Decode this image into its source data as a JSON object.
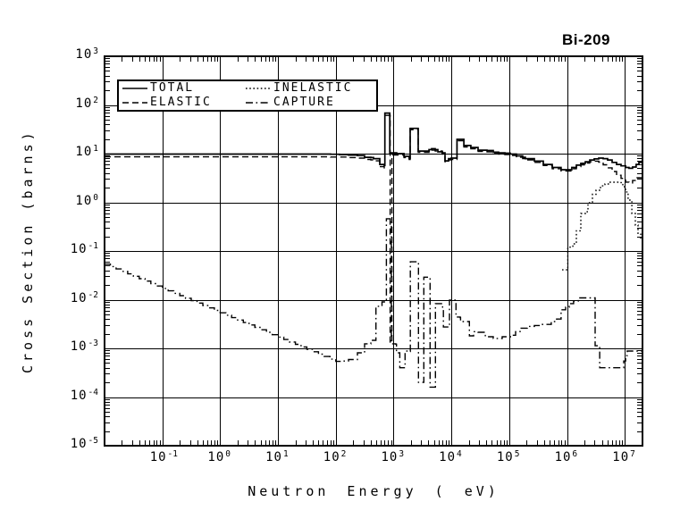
{
  "title": "Bi-209",
  "axes": {
    "xlabel": "Neutron Energy ( eV)",
    "ylabel": "Cross Section (barns)",
    "tick_base": "10",
    "xlim_log": [
      -2,
      7.305
    ],
    "ylim_log": [
      -5,
      3
    ],
    "x_tick_exponents": [
      "-1",
      "0",
      "1",
      "2",
      "3",
      "4",
      "5",
      "6",
      "7"
    ],
    "y_tick_exponents": [
      "3",
      "2",
      "1",
      "0",
      "-1",
      "-2",
      "-3",
      "-4",
      "-5"
    ],
    "line_color": "#000000",
    "background": "#ffffff"
  },
  "legend": {
    "entries": [
      {
        "label": "TOTAL",
        "style": "solid"
      },
      {
        "label": "INELASTIC",
        "style": "dotted"
      },
      {
        "label": "ELASTIC",
        "style": "dashed"
      },
      {
        "label": "CAPTURE",
        "style": "dashdot"
      }
    ]
  },
  "chart_data": {
    "type": "line",
    "x_unit": "eV",
    "y_unit": "barns",
    "x_scale": "log",
    "y_scale": "log",
    "step_plot": true,
    "series": [
      {
        "name": "TOTAL",
        "style": "solid",
        "points": [
          [
            0.01,
            9.8
          ],
          [
            81,
            9.7
          ],
          [
            116,
            9.5
          ],
          [
            166,
            9.3
          ],
          [
            237,
            9.1
          ],
          [
            315,
            8.4
          ],
          [
            404,
            8.3
          ],
          [
            449,
            7.9
          ],
          [
            576,
            6.0
          ],
          [
            688,
            5.7
          ],
          [
            707,
            68
          ],
          [
            852,
            68
          ],
          [
            860,
            10.4
          ],
          [
            1130,
            10.0
          ],
          [
            1510,
            8.8
          ],
          [
            1860,
            8.1
          ],
          [
            1930,
            33
          ],
          [
            2610,
            33
          ],
          [
            2660,
            11.3
          ],
          [
            4090,
            12.1
          ],
          [
            4540,
            12.6
          ],
          [
            5240,
            12.1
          ],
          [
            5820,
            10.9
          ],
          [
            6960,
            10.4
          ],
          [
            7740,
            7.1
          ],
          [
            8930,
            7.9
          ],
          [
            9940,
            8.1
          ],
          [
            12500,
            19.7
          ],
          [
            16100,
            19.7
          ],
          [
            16400,
            14.7
          ],
          [
            21700,
            13.4
          ],
          [
            28900,
            11.8
          ],
          [
            41200,
            11.6
          ],
          [
            52900,
            10.7
          ],
          [
            65500,
            10.4
          ],
          [
            84000,
            10.2
          ],
          [
            104000,
            9.8
          ],
          [
            133000,
            9.0
          ],
          [
            171000,
            8.4
          ],
          [
            190000,
            7.9
          ],
          [
            272000,
            7.0
          ],
          [
            388000,
            6.0
          ],
          [
            554000,
            5.2
          ],
          [
            790000,
            4.67
          ],
          [
            1090000,
            4.67
          ],
          [
            1210000,
            5.2
          ],
          [
            1450000,
            5.8
          ],
          [
            1730000,
            6.3
          ],
          [
            2070000,
            6.8
          ],
          [
            2470000,
            7.4
          ],
          [
            2950000,
            7.8
          ],
          [
            3530000,
            8.1
          ],
          [
            4210000,
            7.9
          ],
          [
            5040000,
            7.4
          ],
          [
            6010000,
            6.6
          ],
          [
            7180000,
            6.0
          ],
          [
            8580000,
            5.6
          ],
          [
            10300000,
            5.2
          ],
          [
            11800000,
            5.0
          ],
          [
            13600000,
            5.3
          ],
          [
            15700000,
            6.0
          ],
          [
            17500000,
            6.6
          ],
          [
            20000000,
            7.3
          ]
        ]
      },
      {
        "name": "ELASTIC",
        "style": "dashed",
        "points": [
          [
            0.01,
            8.6
          ],
          [
            81,
            8.5
          ],
          [
            166,
            8.3
          ],
          [
            237,
            8.1
          ],
          [
            315,
            7.6
          ],
          [
            404,
            7.45
          ],
          [
            449,
            7.1
          ],
          [
            576,
            5.4
          ],
          [
            688,
            5.1
          ],
          [
            707,
            61
          ],
          [
            852,
            61
          ],
          [
            870,
            0.0013
          ],
          [
            930,
            0.0013
          ],
          [
            935,
            9.4
          ],
          [
            1130,
            9.4
          ],
          [
            1510,
            8.3
          ],
          [
            1860,
            7.6
          ],
          [
            1930,
            31
          ],
          [
            2610,
            31
          ],
          [
            2660,
            10.6
          ],
          [
            4090,
            11.3
          ],
          [
            4540,
            11.8
          ],
          [
            5240,
            11.3
          ],
          [
            6960,
            9.8
          ],
          [
            7740,
            6.8
          ],
          [
            8930,
            7.45
          ],
          [
            9940,
            7.6
          ],
          [
            12500,
            18.4
          ],
          [
            16100,
            18.4
          ],
          [
            16400,
            13.7
          ],
          [
            21700,
            12.6
          ],
          [
            28900,
            11.1
          ],
          [
            41200,
            10.9
          ],
          [
            52900,
            10.0
          ],
          [
            65500,
            9.8
          ],
          [
            84000,
            9.6
          ],
          [
            104000,
            9.2
          ],
          [
            133000,
            8.4
          ],
          [
            171000,
            7.9
          ],
          [
            190000,
            7.45
          ],
          [
            272000,
            6.6
          ],
          [
            388000,
            5.7
          ],
          [
            554000,
            4.9
          ],
          [
            790000,
            4.4
          ],
          [
            1090000,
            4.4
          ],
          [
            1210000,
            4.9
          ],
          [
            1450000,
            5.4
          ],
          [
            1730000,
            5.9
          ],
          [
            2070000,
            6.4
          ],
          [
            2470000,
            6.8
          ],
          [
            2950000,
            7.0
          ],
          [
            3530000,
            6.7
          ],
          [
            4210000,
            5.9
          ],
          [
            5040000,
            5.1
          ],
          [
            6010000,
            4.3
          ],
          [
            7180000,
            3.6
          ],
          [
            8580000,
            3.1
          ],
          [
            10300000,
            2.6
          ],
          [
            11800000,
            2.5
          ],
          [
            13600000,
            2.8
          ],
          [
            16300000,
            3.2
          ],
          [
            20000000,
            3.5
          ]
        ]
      },
      {
        "name": "INELASTIC",
        "style": "dotted",
        "points": [
          [
            820000,
            0.041
          ],
          [
            1010000,
            0.041
          ],
          [
            1030000,
            0.12
          ],
          [
            1260000,
            0.14
          ],
          [
            1450000,
            0.26
          ],
          [
            1730000,
            0.59
          ],
          [
            2070000,
            0.64
          ],
          [
            2300000,
            0.98
          ],
          [
            2750000,
            1.46
          ],
          [
            3170000,
            1.77
          ],
          [
            3790000,
            2.18
          ],
          [
            4530000,
            2.38
          ],
          [
            5410000,
            2.59
          ],
          [
            8000000,
            2.54
          ],
          [
            9230000,
            2.09
          ],
          [
            10300000,
            1.63
          ],
          [
            11400000,
            1.11
          ],
          [
            13200000,
            0.59
          ],
          [
            15200000,
            0.34
          ],
          [
            16900000,
            0.23
          ],
          [
            18800000,
            0.17
          ]
        ]
      },
      {
        "name": "CAPTURE",
        "style": "dashdot",
        "points": [
          [
            0.01,
            0.0537
          ],
          [
            0.0126,
            0.0479
          ],
          [
            0.0158,
            0.0427
          ],
          [
            0.02,
            0.0381
          ],
          [
            0.0251,
            0.0339
          ],
          [
            0.0316,
            0.0303
          ],
          [
            0.0398,
            0.027
          ],
          [
            0.0501,
            0.0241
          ],
          [
            0.0631,
            0.0214
          ],
          [
            0.0794,
            0.0191
          ],
          [
            0.1,
            0.017
          ],
          [
            0.126,
            0.0152
          ],
          [
            0.158,
            0.0135
          ],
          [
            0.2,
            0.0121
          ],
          [
            0.251,
            0.0107
          ],
          [
            0.316,
            0.00955
          ],
          [
            0.398,
            0.00852
          ],
          [
            0.501,
            0.00759
          ],
          [
            0.631,
            0.00677
          ],
          [
            0.794,
            0.00603
          ],
          [
            1.0,
            0.00537
          ],
          [
            1.26,
            0.00479
          ],
          [
            1.58,
            0.00427
          ],
          [
            2.0,
            0.00381
          ],
          [
            2.51,
            0.00339
          ],
          [
            3.16,
            0.00303
          ],
          [
            3.98,
            0.0027
          ],
          [
            5.01,
            0.00241
          ],
          [
            6.31,
            0.00214
          ],
          [
            7.94,
            0.00191
          ],
          [
            10,
            0.0017
          ],
          [
            12.6,
            0.00152
          ],
          [
            15.8,
            0.00135
          ],
          [
            20,
            0.00121
          ],
          [
            25.1,
            0.00107
          ],
          [
            31.6,
            0.00096
          ],
          [
            39.8,
            0.00085
          ],
          [
            50.1,
            0.00076
          ],
          [
            63.1,
            0.00068
          ],
          [
            79.4,
            0.0006
          ],
          [
            100,
            0.00054
          ],
          [
            130,
            0.00055
          ],
          [
            166,
            0.00059
          ],
          [
            237,
            0.00081
          ],
          [
            315,
            0.00124
          ],
          [
            404,
            0.00146
          ],
          [
            492,
            0.00146
          ],
          [
            495,
            0.0073
          ],
          [
            629,
            0.009
          ],
          [
            740,
            0.0094
          ],
          [
            750,
            0.46
          ],
          [
            883,
            0.46
          ],
          [
            916,
            0.00124
          ],
          [
            1090,
            0.00122
          ],
          [
            1120,
            0.00081
          ],
          [
            1260,
            0.00081
          ],
          [
            1280,
            0.0004
          ],
          [
            1560,
            0.0004
          ],
          [
            1580,
            0.00088
          ],
          [
            1930,
            0.00086
          ],
          [
            1950,
            0.06
          ],
          [
            2660,
            0.06
          ],
          [
            2690,
            0.0002
          ],
          [
            3300,
            0.0002
          ],
          [
            3330,
            0.029
          ],
          [
            4230,
            0.029
          ],
          [
            4280,
            0.00016
          ],
          [
            5240,
            0.00016
          ],
          [
            5300,
            0.0083
          ],
          [
            6960,
            0.0081
          ],
          [
            7040,
            0.0064
          ],
          [
            7200,
            0.0064
          ],
          [
            7260,
            0.00275
          ],
          [
            8930,
            0.00275
          ],
          [
            9250,
            0.0098
          ],
          [
            11900,
            0.0094
          ],
          [
            12000,
            0.0044
          ],
          [
            14200,
            0.0043
          ],
          [
            14400,
            0.00355
          ],
          [
            20300,
            0.00355
          ],
          [
            20500,
            0.00181
          ],
          [
            24200,
            0.0022
          ],
          [
            28900,
            0.00214
          ],
          [
            38500,
            0.00173
          ],
          [
            52900,
            0.0016
          ],
          [
            75500,
            0.00173
          ],
          [
            108000,
            0.00186
          ],
          [
            129000,
            0.0022
          ],
          [
            154000,
            0.0026
          ],
          [
            205000,
            0.00283
          ],
          [
            272000,
            0.00295
          ],
          [
            374000,
            0.0031
          ],
          [
            534000,
            0.00355
          ],
          [
            661000,
            0.004
          ],
          [
            790000,
            0.0062
          ],
          [
            944000,
            0.007
          ],
          [
            1090000,
            0.0083
          ],
          [
            1300000,
            0.0094
          ],
          [
            1560000,
            0.0109
          ],
          [
            2950000,
            0.0109
          ],
          [
            3060000,
            0.00113
          ],
          [
            3660000,
            0.00109
          ],
          [
            3670000,
            0.0004
          ],
          [
            8580000,
            0.0004
          ],
          [
            9550000,
            0.00055
          ],
          [
            10300000,
            0.00071
          ],
          [
            11000000,
            0.00088
          ],
          [
            20000000,
            0.0009
          ]
        ]
      }
    ]
  }
}
